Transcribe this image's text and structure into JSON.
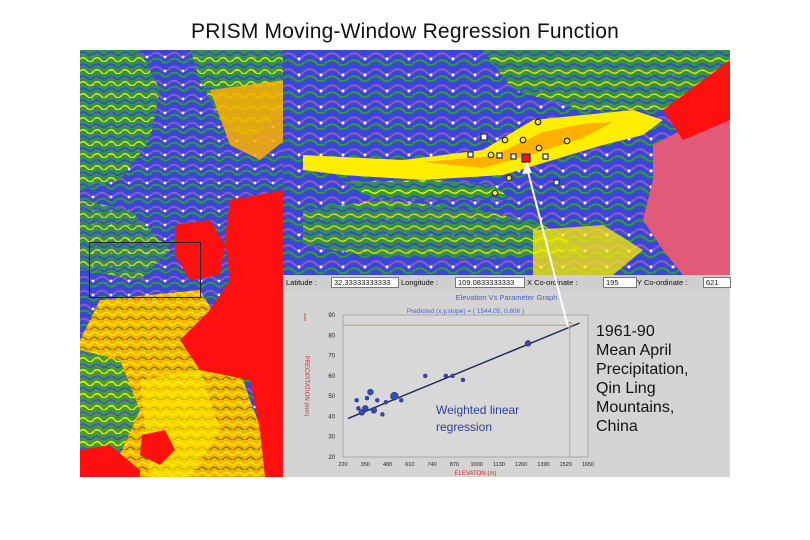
{
  "title": "PRISM Moving-Window Regression Function",
  "coord_bar": {
    "latitude_label": "Latitude  :",
    "latitude_value": "32.33333333333",
    "longitude_label": "Longitude  :",
    "longitude_value": "109.0833333333",
    "x_label": "X Co-ordinate  :",
    "x_value": "195",
    "y_label": "Y Co-ordinate  :",
    "y_value": "621"
  },
  "graph_title": "Elevation Vs Parameter Graph",
  "annotation": [
    "Weighted linear",
    "regression"
  ],
  "map_caption": [
    "1961-90",
    "Mean April",
    "Precipitation,",
    "Qin Ling",
    "Mountains,",
    "China"
  ],
  "colors": {
    "water_red": "#ff1010",
    "low_orange": "#ffb000",
    "mid_yellow": "#ffee00",
    "green": "#2f9a3a",
    "blue": "#3a46d6",
    "purple": "#8a5ac8",
    "pink_high": "#e25a78",
    "regression_line": "#1c2850",
    "point": "#3448b8"
  },
  "chart_data": {
    "type": "scatter",
    "title": "Predicted (x,y,slope) = ( 1544.05, 0.806 )",
    "xlabel": "ELEVATON (m)",
    "ylabel": "PRECIPITATION (mm)",
    "xlim": [
      220,
      1650
    ],
    "ylim": [
      20,
      90
    ],
    "x_ticks": [
      220,
      350,
      480,
      610,
      740,
      870,
      1000,
      1130,
      1260,
      1390,
      1520,
      1650
    ],
    "y_ticks": [
      20,
      30,
      40,
      50,
      60,
      70,
      80,
      90
    ],
    "regression": {
      "x": [
        250,
        1600
      ],
      "y": [
        39,
        86
      ]
    },
    "predicted": {
      "x": 1544,
      "y": 85
    },
    "points": [
      {
        "x": 300,
        "y": 48,
        "r": 2
      },
      {
        "x": 310,
        "y": 44,
        "r": 2
      },
      {
        "x": 330,
        "y": 42,
        "r": 3
      },
      {
        "x": 350,
        "y": 44,
        "r": 3
      },
      {
        "x": 360,
        "y": 49,
        "r": 2
      },
      {
        "x": 380,
        "y": 52,
        "r": 3
      },
      {
        "x": 400,
        "y": 43,
        "r": 3
      },
      {
        "x": 420,
        "y": 48,
        "r": 2
      },
      {
        "x": 450,
        "y": 41,
        "r": 2
      },
      {
        "x": 470,
        "y": 47,
        "r": 2
      },
      {
        "x": 520,
        "y": 50,
        "r": 4
      },
      {
        "x": 560,
        "y": 48,
        "r": 2
      },
      {
        "x": 700,
        "y": 60,
        "r": 2
      },
      {
        "x": 820,
        "y": 60,
        "r": 2
      },
      {
        "x": 860,
        "y": 60,
        "r": 2
      },
      {
        "x": 920,
        "y": 58,
        "r": 2
      },
      {
        "x": 1300,
        "y": 76,
        "r": 3
      }
    ]
  }
}
